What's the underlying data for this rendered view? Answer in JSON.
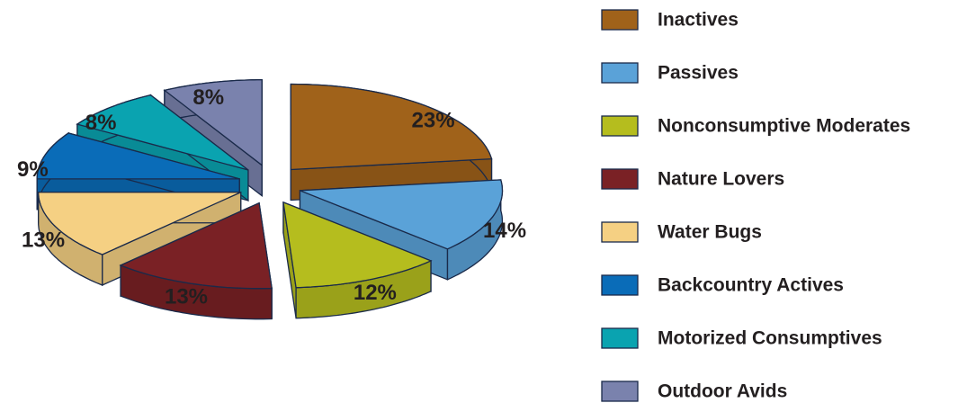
{
  "chart_data": {
    "type": "pie3d",
    "categories": [
      "Inactives",
      "Passives",
      "Nonconsumptive Moderates",
      "Nature Lovers",
      "Water Bugs",
      "Backcountry Actives",
      "Motorized Consumptives",
      "Outdoor Avids"
    ],
    "values": [
      23,
      14,
      12,
      13,
      13,
      9,
      8,
      8
    ],
    "value_labels": [
      "23%",
      "14%",
      "12%",
      "13%",
      "13%",
      "9%",
      "8%",
      "8%"
    ],
    "colors": [
      "#a0621a",
      "#5aa2d8",
      "#b5bd1e",
      "#7a2125",
      "#f5d083",
      "#0a6cb8",
      "#0aa3b0",
      "#7a82ad"
    ],
    "legend": "right"
  }
}
